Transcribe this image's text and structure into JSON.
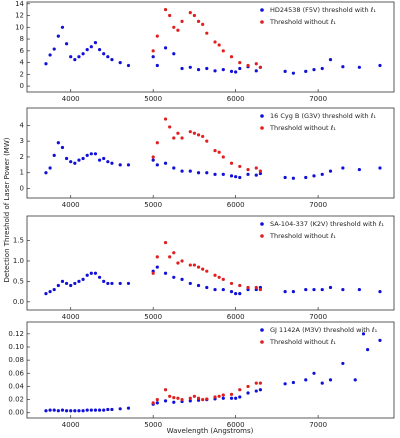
{
  "figure": {
    "x_label": "Wavelength (Angstroms)",
    "y_label": "Detection Threshold of Laser Power (MW)"
  },
  "chart_data": [
    {
      "type": "scatter",
      "xlim": [
        3470,
        7920
      ],
      "xticks": [
        4000,
        5000,
        6000,
        7000
      ],
      "ylim": [
        -1,
        14.3
      ],
      "yticks": [
        0,
        2,
        4,
        6,
        8,
        10,
        12,
        14
      ],
      "legend": "upper right",
      "series": [
        {
          "name": "HD24538 (F5V) threshold with ℓ₁",
          "color": "#1010d8",
          "x": [
            3700,
            3750,
            3800,
            3850,
            3900,
            3950,
            4000,
            4050,
            4100,
            4150,
            4200,
            4250,
            4300,
            4350,
            4400,
            4450,
            4500,
            4600,
            4700,
            5000,
            5050,
            5150,
            5250,
            5350,
            5450,
            5550,
            5650,
            5750,
            5850,
            5950,
            6000,
            6050,
            6150,
            6250,
            6300,
            6600,
            6700,
            6850,
            6950,
            7050,
            7150,
            7300,
            7500,
            7750
          ],
          "values": [
            3.8,
            5.3,
            6.3,
            8.5,
            10,
            7.2,
            5,
            4.5,
            5,
            5.5,
            6.2,
            6.7,
            7.4,
            6.2,
            5.5,
            5,
            4.5,
            4,
            3.5,
            5,
            3.5,
            6.5,
            5.5,
            3,
            3.2,
            2.8,
            3,
            2.6,
            2.8,
            2.5,
            2.4,
            3,
            3.3,
            2.6,
            3.2,
            2.5,
            2.2,
            2.5,
            2.8,
            3,
            4.5,
            3.3,
            3.2,
            3.5
          ]
        },
        {
          "name": "Threshold without ℓ₁",
          "color": "#e02020",
          "x": [
            5000,
            5050,
            5150,
            5200,
            5250,
            5300,
            5350,
            5450,
            5500,
            5550,
            5600,
            5650,
            5750,
            5800,
            5850,
            5950,
            6050,
            6150,
            6250,
            6300
          ],
          "values": [
            6,
            8.5,
            13,
            12,
            10,
            9.5,
            11,
            12.5,
            12,
            11,
            10.5,
            9,
            7.5,
            7,
            6,
            5,
            4,
            3.5,
            3.8,
            3.2
          ]
        }
      ]
    },
    {
      "type": "scatter",
      "xlim": [
        3470,
        7920
      ],
      "xticks": [
        4000,
        5000,
        6000,
        7000
      ],
      "ylim": [
        -0.6,
        5.1
      ],
      "yticks": [
        0,
        1,
        2,
        3,
        4
      ],
      "legend": "upper right",
      "series": [
        {
          "name": "16 Cyg B (G3V) threshold with ℓ₁",
          "color": "#1010d8",
          "x": [
            3700,
            3750,
            3800,
            3850,
            3900,
            3950,
            4000,
            4050,
            4100,
            4150,
            4200,
            4250,
            4300,
            4350,
            4400,
            4450,
            4500,
            4600,
            4700,
            5000,
            5050,
            5150,
            5250,
            5350,
            5450,
            5550,
            5650,
            5750,
            5850,
            5950,
            6000,
            6050,
            6150,
            6250,
            6300,
            6600,
            6700,
            6850,
            6950,
            7050,
            7150,
            7300,
            7500,
            7750
          ],
          "values": [
            1,
            1.3,
            2.1,
            2.9,
            2.6,
            1.9,
            1.7,
            1.6,
            1.8,
            1.9,
            2.1,
            2.2,
            2.2,
            1.8,
            1.9,
            1.7,
            1.6,
            1.5,
            1.5,
            1.8,
            1.5,
            1.6,
            1.3,
            1.1,
            1.1,
            1,
            1,
            0.9,
            0.9,
            0.8,
            0.75,
            0.7,
            0.9,
            0.85,
            0.95,
            0.7,
            0.65,
            0.7,
            0.8,
            0.9,
            1.1,
            1.3,
            1.2,
            1.3
          ]
        },
        {
          "name": "Threshold without ℓ₁",
          "color": "#e02020",
          "x": [
            5000,
            5050,
            5150,
            5200,
            5250,
            5300,
            5350,
            5450,
            5500,
            5550,
            5600,
            5650,
            5750,
            5800,
            5850,
            5950,
            6050,
            6150,
            6250,
            6300
          ],
          "values": [
            2,
            2.9,
            4.4,
            3.9,
            3.2,
            3.5,
            3.2,
            3.6,
            3.5,
            3.4,
            3.3,
            3,
            2.4,
            2.3,
            2,
            1.6,
            1.4,
            1.2,
            1.3,
            1.1
          ]
        }
      ]
    },
    {
      "type": "scatter",
      "xlim": [
        3470,
        7920
      ],
      "xticks": [
        4000,
        5000,
        6000,
        7000
      ],
      "ylim": [
        -0.2,
        2.1
      ],
      "yticks": [
        {
          "value": 0,
          "label": "0.0"
        },
        0.5,
        {
          "value": 1,
          "label": "1.0"
        },
        1.5
      ],
      "legend": "upper right",
      "series": [
        {
          "name": "SA-104-337 (K2V) threshold with ℓ₁",
          "color": "#1010d8",
          "x": [
            3700,
            3750,
            3800,
            3850,
            3900,
            3950,
            4000,
            4050,
            4100,
            4150,
            4200,
            4250,
            4300,
            4350,
            4400,
            4450,
            4500,
            4600,
            4700,
            5000,
            5050,
            5150,
            5250,
            5350,
            5450,
            5550,
            5650,
            5750,
            5850,
            5950,
            6000,
            6050,
            6150,
            6250,
            6300,
            6600,
            6700,
            6850,
            6950,
            7050,
            7150,
            7300,
            7500,
            7750
          ],
          "values": [
            0.2,
            0.25,
            0.3,
            0.4,
            0.5,
            0.45,
            0.4,
            0.45,
            0.5,
            0.55,
            0.65,
            0.7,
            0.7,
            0.6,
            0.5,
            0.45,
            0.45,
            0.45,
            0.45,
            0.75,
            0.85,
            0.7,
            0.6,
            0.55,
            0.45,
            0.4,
            0.35,
            0.3,
            0.3,
            0.25,
            0.2,
            0.2,
            0.3,
            0.3,
            0.35,
            0.25,
            0.25,
            0.3,
            0.3,
            0.3,
            0.35,
            0.3,
            0.3,
            0.25
          ]
        },
        {
          "name": "Threshold without ℓ₁",
          "color": "#e02020",
          "x": [
            5000,
            5050,
            5150,
            5200,
            5250,
            5300,
            5350,
            5450,
            5500,
            5550,
            5600,
            5650,
            5750,
            5800,
            5850,
            5950,
            6050,
            6150,
            6250,
            6300
          ],
          "values": [
            0.7,
            1.1,
            1.45,
            1.1,
            1.2,
            0.95,
            1,
            0.9,
            0.9,
            0.85,
            0.8,
            0.75,
            0.65,
            0.6,
            0.55,
            0.45,
            0.4,
            0.35,
            0.35,
            0.3
          ]
        }
      ]
    },
    {
      "type": "scatter",
      "xlim": [
        3470,
        7920
      ],
      "xticks": [
        4000,
        5000,
        6000,
        7000
      ],
      "ylim": [
        -0.008,
        0.138
      ],
      "yticks": [
        {
          "value": 0,
          "label": "0.00"
        },
        0.02,
        0.04,
        0.06,
        0.08,
        {
          "value": 0.1,
          "label": "0.10"
        },
        0.12
      ],
      "legend": "upper right",
      "series": [
        {
          "name": "GJ 1142A (M3V) threshold with ℓ₁",
          "color": "#1010d8",
          "x": [
            3700,
            3750,
            3800,
            3850,
            3900,
            3950,
            4000,
            4050,
            4100,
            4150,
            4200,
            4250,
            4300,
            4350,
            4400,
            4450,
            4500,
            4600,
            4700,
            5000,
            5050,
            5150,
            5250,
            5350,
            5450,
            5550,
            5650,
            5750,
            5850,
            5950,
            6000,
            6050,
            6150,
            6250,
            6300,
            6600,
            6700,
            6850,
            6950,
            7050,
            7150,
            7300,
            7450,
            7550,
            7600,
            7750
          ],
          "values": [
            0.003,
            0.004,
            0.004,
            0.003,
            0.004,
            0.003,
            0.003,
            0.003,
            0.003,
            0.003,
            0.004,
            0.004,
            0.004,
            0.004,
            0.004,
            0.005,
            0.005,
            0.006,
            0.007,
            0.013,
            0.015,
            0.018,
            0.016,
            0.017,
            0.018,
            0.019,
            0.02,
            0.021,
            0.022,
            0.022,
            0.022,
            0.024,
            0.03,
            0.033,
            0.035,
            0.044,
            0.046,
            0.05,
            0.06,
            0.045,
            0.05,
            0.075,
            0.05,
            0.12,
            0.096,
            0.11
          ]
        },
        {
          "name": "Threshold without ℓ₁",
          "color": "#e02020",
          "x": [
            5000,
            5050,
            5150,
            5200,
            5250,
            5300,
            5350,
            5450,
            5500,
            5550,
            5600,
            5650,
            5750,
            5800,
            5850,
            5950,
            6050,
            6150,
            6250,
            6300
          ],
          "values": [
            0.015,
            0.02,
            0.035,
            0.025,
            0.023,
            0.022,
            0.02,
            0.022,
            0.025,
            0.022,
            0.02,
            0.021,
            0.024,
            0.025,
            0.027,
            0.028,
            0.035,
            0.04,
            0.045,
            0.045
          ]
        }
      ]
    }
  ]
}
